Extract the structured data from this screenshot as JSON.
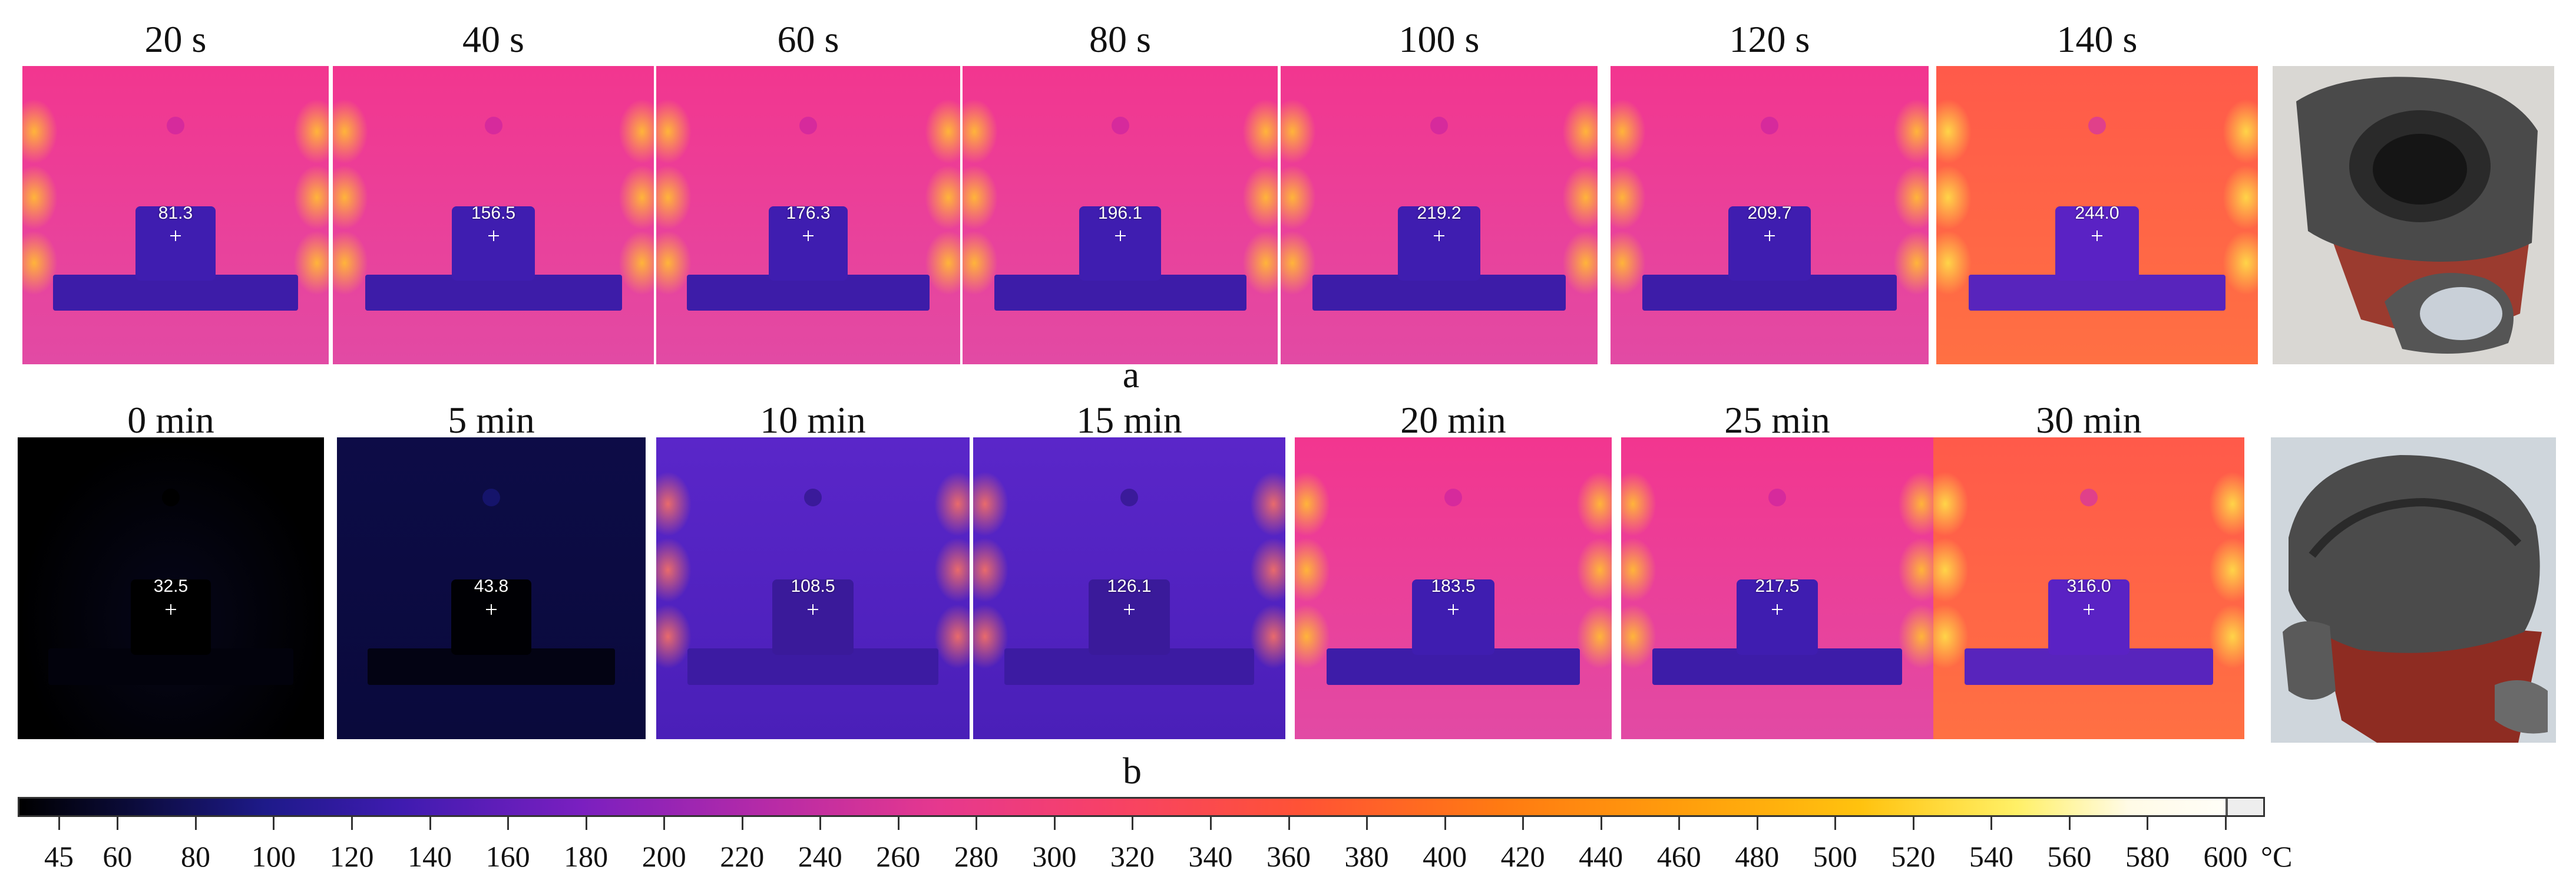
{
  "rows": [
    {
      "id": "a",
      "caption": "a",
      "frames": [
        {
          "label": "20 s",
          "reading": "81.3",
          "palette": "hot"
        },
        {
          "label": "40 s",
          "reading": "156.5",
          "palette": "hot"
        },
        {
          "label": "60 s",
          "reading": "176.3",
          "palette": "hot"
        },
        {
          "label": "80 s",
          "reading": "196.1",
          "palette": "hot"
        },
        {
          "label": "100 s",
          "reading": "219.2",
          "palette": "hot"
        },
        {
          "label": "120 s",
          "reading": "209.7",
          "palette": "hot"
        },
        {
          "label": "140 s",
          "reading": "244.0",
          "palette": "hotter"
        }
      ]
    },
    {
      "id": "b",
      "caption": "b",
      "frames": [
        {
          "label": "0 min",
          "reading": "32.5",
          "palette": "black"
        },
        {
          "label": "5 min",
          "reading": "43.8",
          "palette": "navy"
        },
        {
          "label": "10 min",
          "reading": "108.5",
          "palette": "violet"
        },
        {
          "label": "15 min",
          "reading": "126.1",
          "palette": "violet"
        },
        {
          "label": "20 min",
          "reading": "183.5",
          "palette": "hot"
        },
        {
          "label": "25 min",
          "reading": "217.5",
          "palette": "hot"
        },
        {
          "label": "30 min",
          "reading": "316.0",
          "palette": "hotter"
        }
      ]
    }
  ],
  "colorbar": {
    "min": 45,
    "max": 600,
    "ticks": [
      "45",
      "60",
      "80",
      "100",
      "120",
      "140",
      "160",
      "180",
      "200",
      "220",
      "240",
      "260",
      "280",
      "300",
      "320",
      "340",
      "360",
      "380",
      "400",
      "420",
      "440",
      "460",
      "480",
      "500",
      "520",
      "540",
      "560",
      "580",
      "600"
    ],
    "unit": "°C",
    "colors": [
      "#000000",
      "#1e1a8a",
      "#7a1fc0",
      "#e6388e",
      "#ff5236",
      "#ff9d0c",
      "#fff066",
      "#ffffff"
    ]
  },
  "icons": {
    "sample_photo_a": "foam-sample-photo",
    "sample_photo_b": "foam-sample-photo"
  }
}
